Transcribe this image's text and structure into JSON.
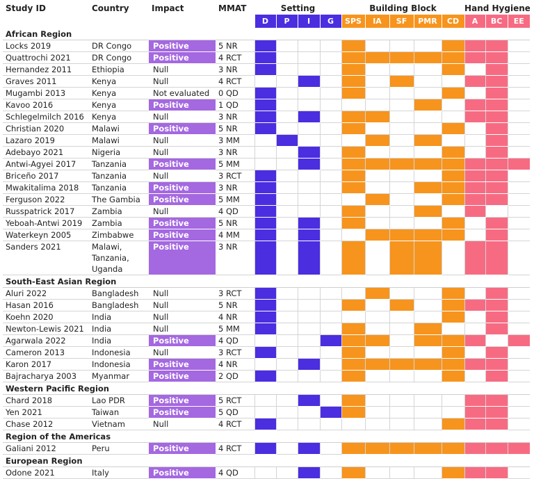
{
  "headers": {
    "study_id": "Study ID",
    "country": "Country",
    "impact": "Impact",
    "mmat": "MMAT",
    "setting": "Setting",
    "building_block": "Building Block",
    "hand_hygiene": "Hand Hygiene"
  },
  "setting_cols": [
    "D",
    "P",
    "I",
    "G"
  ],
  "bb_cols": [
    "SPS",
    "IA",
    "SF",
    "PMR",
    "CD"
  ],
  "hh_cols": [
    "A",
    "BC",
    "EE"
  ],
  "colors": {
    "setting": "#4a2ee0",
    "building_block": "#f7941d",
    "hand_hygiene": "#f76b82",
    "positive": "#a468e0"
  },
  "regions": [
    {
      "name": "African Region",
      "studies": [
        {
          "id": "Locks 2019",
          "country": "DR Congo",
          "impact": "Positive",
          "mmat": "5 NR",
          "setting": [
            1,
            0,
            0,
            0
          ],
          "bb": [
            1,
            0,
            0,
            0,
            1
          ],
          "hh": [
            1,
            1,
            0
          ]
        },
        {
          "id": "Quattrochi 2021",
          "country": "DR Congo",
          "impact": "Positive",
          "mmat": "4 RCT",
          "setting": [
            1,
            0,
            0,
            0
          ],
          "bb": [
            1,
            1,
            1,
            1,
            1
          ],
          "hh": [
            1,
            1,
            0
          ]
        },
        {
          "id": "Hernandez 2011",
          "country": "Ethiopia",
          "impact": "Null",
          "mmat": "3 NR",
          "setting": [
            1,
            0,
            0,
            0
          ],
          "bb": [
            1,
            0,
            0,
            0,
            1
          ],
          "hh": [
            0,
            1,
            0
          ]
        },
        {
          "id": "Graves 2011",
          "country": "Kenya",
          "impact": "Null",
          "mmat": "4 RCT",
          "setting": [
            0,
            0,
            1,
            0
          ],
          "bb": [
            1,
            0,
            1,
            0,
            0
          ],
          "hh": [
            1,
            1,
            0
          ]
        },
        {
          "id": "Mugambi 2013",
          "country": "Kenya",
          "impact": "Not evaluated",
          "mmat": "0 QD",
          "setting": [
            1,
            0,
            0,
            0
          ],
          "bb": [
            1,
            0,
            0,
            0,
            1
          ],
          "hh": [
            0,
            1,
            0
          ]
        },
        {
          "id": "Kavoo 2016",
          "country": "Kenya",
          "impact": "Positive",
          "mmat": "1 QD",
          "setting": [
            1,
            0,
            0,
            0
          ],
          "bb": [
            0,
            0,
            0,
            1,
            0
          ],
          "hh": [
            1,
            1,
            0
          ]
        },
        {
          "id": "Schlegelmilch 2016",
          "country": "Kenya",
          "impact": "Null",
          "mmat": "3 NR",
          "setting": [
            1,
            0,
            1,
            0
          ],
          "bb": [
            1,
            1,
            0,
            0,
            0
          ],
          "hh": [
            1,
            1,
            0
          ]
        },
        {
          "id": "Christian 2020",
          "country": "Malawi",
          "impact": "Positive",
          "mmat": "5 NR",
          "setting": [
            1,
            0,
            0,
            0
          ],
          "bb": [
            1,
            0,
            0,
            0,
            1
          ],
          "hh": [
            0,
            1,
            0
          ]
        },
        {
          "id": "Lazaro 2019",
          "country": "Malawi",
          "impact": "Null",
          "mmat": "3 MM",
          "setting": [
            0,
            1,
            0,
            0
          ],
          "bb": [
            0,
            1,
            0,
            1,
            0
          ],
          "hh": [
            0,
            1,
            0
          ]
        },
        {
          "id": "Adebayo 2021",
          "country": "Nigeria",
          "impact": "Null",
          "mmat": "3 NR",
          "setting": [
            0,
            0,
            1,
            0
          ],
          "bb": [
            1,
            0,
            0,
            0,
            1
          ],
          "hh": [
            0,
            1,
            0
          ]
        },
        {
          "id": "Antwi-Agyei 2017",
          "country": "Tanzania",
          "impact": "Positive",
          "mmat": "5 MM",
          "setting": [
            0,
            0,
            1,
            0
          ],
          "bb": [
            1,
            1,
            1,
            1,
            1
          ],
          "hh": [
            1,
            1,
            1
          ]
        },
        {
          "id": "Briceño 2017",
          "country": "Tanzania",
          "impact": "Null",
          "mmat": "3 RCT",
          "setting": [
            1,
            0,
            0,
            0
          ],
          "bb": [
            1,
            0,
            0,
            0,
            1
          ],
          "hh": [
            1,
            1,
            0
          ]
        },
        {
          "id": "Mwakitalima 2018",
          "country": "Tanzania",
          "impact": "Positive",
          "mmat": "3 NR",
          "setting": [
            1,
            0,
            0,
            0
          ],
          "bb": [
            1,
            0,
            0,
            1,
            1
          ],
          "hh": [
            1,
            1,
            0
          ]
        },
        {
          "id": "Ferguson 2022",
          "country": "The Gambia",
          "impact": "Positive",
          "mmat": "5 MM",
          "setting": [
            1,
            0,
            0,
            0
          ],
          "bb": [
            0,
            1,
            0,
            0,
            1
          ],
          "hh": [
            1,
            1,
            0
          ]
        },
        {
          "id": "Russpatrick 2017",
          "country": "Zambia",
          "impact": "Null",
          "mmat": "4 QD",
          "setting": [
            1,
            0,
            0,
            0
          ],
          "bb": [
            1,
            0,
            0,
            1,
            0
          ],
          "hh": [
            1,
            0,
            0
          ]
        },
        {
          "id": "Yeboah-Antwi 2019",
          "country": "Zambia",
          "impact": "Positive",
          "mmat": "5 NR",
          "setting": [
            1,
            0,
            1,
            0
          ],
          "bb": [
            1,
            0,
            0,
            0,
            1
          ],
          "hh": [
            0,
            1,
            0
          ]
        },
        {
          "id": "Waterkeyn 2005",
          "country": "Zimbabwe",
          "impact": "Positive",
          "mmat": "4 MM",
          "setting": [
            1,
            0,
            1,
            0
          ],
          "bb": [
            0,
            1,
            1,
            1,
            1
          ],
          "hh": [
            0,
            1,
            0
          ]
        },
        {
          "id": "Sanders 2021",
          "country": "Malawi,\nTanzania,\nUganda",
          "impact": "Positive",
          "mmat": "3 NR",
          "tall": true,
          "setting": [
            1,
            0,
            1,
            0
          ],
          "bb": [
            1,
            0,
            1,
            1,
            0
          ],
          "hh": [
            1,
            1,
            0
          ]
        }
      ]
    },
    {
      "name": "South-East Asian Region",
      "studies": [
        {
          "id": "Aluri 2022",
          "country": "Bangladesh",
          "impact": "Null",
          "mmat": "3 RCT",
          "setting": [
            1,
            0,
            0,
            0
          ],
          "bb": [
            0,
            1,
            0,
            0,
            1
          ],
          "hh": [
            0,
            1,
            0
          ]
        },
        {
          "id": "Hasan 2016",
          "country": "Bangladesh",
          "impact": "Null",
          "mmat": "5 NR",
          "setting": [
            1,
            0,
            0,
            0
          ],
          "bb": [
            1,
            0,
            1,
            0,
            1
          ],
          "hh": [
            1,
            1,
            0
          ]
        },
        {
          "id": "Koehn 2020",
          "country": "India",
          "impact": "Null",
          "mmat": "4 NR",
          "setting": [
            1,
            0,
            0,
            0
          ],
          "bb": [
            0,
            0,
            0,
            0,
            1
          ],
          "hh": [
            0,
            1,
            0
          ]
        },
        {
          "id": "Newton-Lewis 2021",
          "country": "India",
          "impact": "Null",
          "mmat": "5 MM",
          "setting": [
            1,
            0,
            0,
            0
          ],
          "bb": [
            1,
            0,
            0,
            1,
            0
          ],
          "hh": [
            0,
            1,
            0
          ]
        },
        {
          "id": "Agarwala 2022",
          "country": "India",
          "impact": "Positive",
          "mmat": "4 QD",
          "setting": [
            0,
            0,
            0,
            1
          ],
          "bb": [
            1,
            1,
            0,
            1,
            1
          ],
          "hh": [
            1,
            0,
            1
          ]
        },
        {
          "id": "Cameron 2013",
          "country": "Indonesia",
          "impact": "Null",
          "mmat": "3 RCT",
          "setting": [
            1,
            0,
            0,
            0
          ],
          "bb": [
            1,
            0,
            0,
            0,
            1
          ],
          "hh": [
            0,
            1,
            0
          ]
        },
        {
          "id": "Karon 2017",
          "country": "Indonesia",
          "impact": "Positive",
          "mmat": "4 NR",
          "setting": [
            0,
            0,
            1,
            0
          ],
          "bb": [
            1,
            1,
            1,
            1,
            1
          ],
          "hh": [
            1,
            1,
            0
          ]
        },
        {
          "id": "Bajracharya 2003",
          "country": "Myanmar",
          "impact": "Positive",
          "mmat": "2 QD",
          "setting": [
            1,
            0,
            0,
            0
          ],
          "bb": [
            1,
            0,
            0,
            0,
            1
          ],
          "hh": [
            0,
            1,
            0
          ]
        }
      ]
    },
    {
      "name": "Western Pacific Region",
      "studies": [
        {
          "id": "Chard 2018",
          "country": "Lao PDR",
          "impact": "Positive",
          "mmat": "5 RCT",
          "setting": [
            0,
            0,
            1,
            0
          ],
          "bb": [
            1,
            0,
            0,
            0,
            0
          ],
          "hh": [
            1,
            1,
            0
          ]
        },
        {
          "id": "Yen 2021",
          "country": "Taiwan",
          "impact": "Positive",
          "mmat": "5 QD",
          "setting": [
            0,
            0,
            0,
            1
          ],
          "bb": [
            1,
            0,
            0,
            0,
            0
          ],
          "hh": [
            1,
            1,
            0
          ]
        },
        {
          "id": "Chase 2012",
          "country": "Vietnam",
          "impact": "Null",
          "mmat": "4 RCT",
          "setting": [
            1,
            0,
            0,
            0
          ],
          "bb": [
            0,
            0,
            0,
            0,
            1
          ],
          "hh": [
            1,
            1,
            0
          ]
        }
      ]
    },
    {
      "name": "Region of the Americas",
      "studies": [
        {
          "id": "Galiani 2012",
          "country": "Peru",
          "impact": "Positive",
          "mmat": "4 RCT",
          "setting": [
            1,
            0,
            1,
            0
          ],
          "bb": [
            1,
            1,
            1,
            1,
            1
          ],
          "hh": [
            1,
            1,
            1
          ]
        }
      ]
    },
    {
      "name": "European Region",
      "studies": [
        {
          "id": "Odone 2021",
          "country": "Italy",
          "impact": "Positive",
          "mmat": "4 QD",
          "setting": [
            0,
            0,
            1,
            0
          ],
          "bb": [
            1,
            0,
            0,
            0,
            1
          ],
          "hh": [
            1,
            1,
            0
          ]
        }
      ]
    }
  ]
}
